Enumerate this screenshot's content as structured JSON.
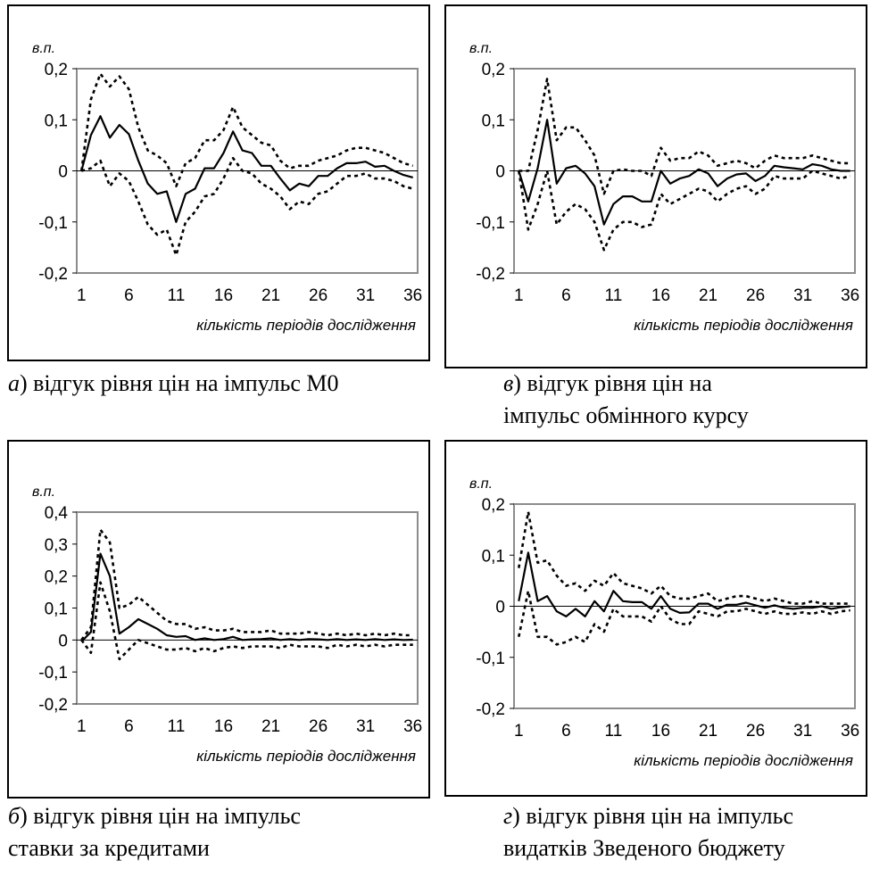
{
  "chart_data": [
    {
      "type": "line",
      "unit_label": "в.п.",
      "xlabel": "кількість періодів дослідження",
      "caption_letter": "а",
      "caption_lines": [
        ") відгук рівня цін на імпульс М0"
      ],
      "ylim": [
        -0.2,
        0.2
      ],
      "yticks": [
        "0,2",
        "0,1",
        "0",
        "-0,1",
        "-0,2"
      ],
      "ytick_values": [
        0.2,
        0.1,
        0,
        -0.1,
        -0.2
      ],
      "xticks": [
        "1",
        "6",
        "11",
        "16",
        "21",
        "26",
        "31",
        "36"
      ],
      "x": [
        1,
        2,
        3,
        4,
        5,
        6,
        7,
        8,
        9,
        10,
        11,
        12,
        13,
        14,
        15,
        16,
        17,
        18,
        19,
        20,
        21,
        22,
        23,
        24,
        25,
        26,
        27,
        28,
        29,
        30,
        31,
        32,
        33,
        34,
        35,
        36
      ],
      "series": [
        {
          "style": "solid",
          "values": [
            0.0,
            0.07,
            0.107,
            0.065,
            0.09,
            0.072,
            0.02,
            -0.025,
            -0.045,
            -0.04,
            -0.1,
            -0.045,
            -0.035,
            0.005,
            0.005,
            0.035,
            0.077,
            0.04,
            0.035,
            0.01,
            0.01,
            -0.015,
            -0.038,
            -0.025,
            -0.03,
            -0.01,
            -0.01,
            0.005,
            0.015,
            0.015,
            0.018,
            0.008,
            0.01,
            0.0,
            -0.008,
            -0.013
          ]
        },
        {
          "style": "dotted",
          "values": [
            0.0,
            0.14,
            0.19,
            0.165,
            0.185,
            0.16,
            0.085,
            0.04,
            0.03,
            0.015,
            -0.03,
            0.015,
            0.025,
            0.06,
            0.06,
            0.08,
            0.125,
            0.085,
            0.07,
            0.055,
            0.05,
            0.02,
            0.005,
            0.01,
            0.01,
            0.02,
            0.025,
            0.03,
            0.04,
            0.045,
            0.045,
            0.04,
            0.035,
            0.025,
            0.015,
            0.01
          ]
        },
        {
          "style": "dotted",
          "values": [
            0.0,
            0.005,
            0.02,
            -0.03,
            -0.005,
            -0.02,
            -0.06,
            -0.105,
            -0.125,
            -0.115,
            -0.165,
            -0.1,
            -0.08,
            -0.05,
            -0.045,
            -0.015,
            0.025,
            0.0,
            -0.005,
            -0.025,
            -0.035,
            -0.05,
            -0.075,
            -0.06,
            -0.065,
            -0.045,
            -0.04,
            -0.025,
            -0.01,
            -0.01,
            -0.005,
            -0.015,
            -0.015,
            -0.02,
            -0.03,
            -0.035
          ]
        }
      ]
    },
    {
      "type": "line",
      "unit_label": "в.п.",
      "xlabel": "кількість періодів дослідження",
      "caption_letter": "в",
      "caption_lines": [
        ") відгук рівня цін на",
        "імпульс обмінного курсу"
      ],
      "ylim": [
        -0.2,
        0.2
      ],
      "yticks": [
        "0,2",
        "0,1",
        "0",
        "-0,1",
        "-0,2"
      ],
      "ytick_values": [
        0.2,
        0.1,
        0,
        -0.1,
        -0.2
      ],
      "xticks": [
        "1",
        "6",
        "11",
        "16",
        "21",
        "26",
        "31",
        "36"
      ],
      "x": [
        1,
        2,
        3,
        4,
        5,
        6,
        7,
        8,
        9,
        10,
        11,
        12,
        13,
        14,
        15,
        16,
        17,
        18,
        19,
        20,
        21,
        22,
        23,
        24,
        25,
        26,
        27,
        28,
        29,
        30,
        31,
        32,
        33,
        34,
        35,
        36
      ],
      "series": [
        {
          "style": "solid",
          "values": [
            0.0,
            -0.06,
            0.005,
            0.1,
            -0.025,
            0.005,
            0.01,
            -0.005,
            -0.03,
            -0.105,
            -0.065,
            -0.05,
            -0.05,
            -0.06,
            -0.06,
            0.0,
            -0.025,
            -0.015,
            -0.01,
            0.003,
            -0.005,
            -0.03,
            -0.015,
            -0.007,
            -0.005,
            -0.02,
            -0.01,
            0.01,
            0.007,
            0.005,
            0.003,
            0.013,
            0.01,
            0.003,
            0.0,
            0.0
          ]
        },
        {
          "style": "dotted",
          "values": [
            0.0,
            0.0,
            0.08,
            0.18,
            0.06,
            0.085,
            0.085,
            0.06,
            0.03,
            -0.045,
            0.0,
            0.003,
            0.0,
            0.0,
            -0.01,
            0.045,
            0.02,
            0.025,
            0.025,
            0.038,
            0.03,
            0.01,
            0.015,
            0.02,
            0.015,
            0.005,
            0.02,
            0.03,
            0.025,
            0.025,
            0.025,
            0.03,
            0.025,
            0.02,
            0.015,
            0.015
          ]
        },
        {
          "style": "dotted",
          "values": [
            0.0,
            -0.115,
            -0.065,
            0.0,
            -0.105,
            -0.08,
            -0.065,
            -0.075,
            -0.1,
            -0.155,
            -0.115,
            -0.1,
            -0.1,
            -0.11,
            -0.105,
            -0.045,
            -0.065,
            -0.055,
            -0.045,
            -0.035,
            -0.04,
            -0.06,
            -0.045,
            -0.035,
            -0.03,
            -0.045,
            -0.035,
            -0.01,
            -0.015,
            -0.015,
            -0.015,
            0.0,
            -0.005,
            -0.01,
            -0.015,
            -0.01
          ]
        }
      ]
    },
    {
      "type": "line",
      "unit_label": "в.п.",
      "xlabel": "кількість періодів дослідження",
      "caption_letter": "б",
      "caption_lines": [
        ") відгук рівня цін на імпульс",
        "ставки за кредитами"
      ],
      "ylim": [
        -0.2,
        0.4
      ],
      "yticks": [
        "0,4",
        "0,3",
        "0,2",
        "0,1",
        "0",
        "-0,1",
        "-0,2"
      ],
      "ytick_values": [
        0.4,
        0.3,
        0.2,
        0.1,
        0,
        -0.1,
        -0.2
      ],
      "xticks": [
        "1",
        "6",
        "11",
        "16",
        "21",
        "26",
        "31",
        "36"
      ],
      "x": [
        1,
        2,
        3,
        4,
        5,
        6,
        7,
        8,
        9,
        10,
        11,
        12,
        13,
        14,
        15,
        16,
        17,
        18,
        19,
        20,
        21,
        22,
        23,
        24,
        25,
        26,
        27,
        28,
        29,
        30,
        31,
        32,
        33,
        34,
        35,
        36
      ],
      "series": [
        {
          "style": "solid",
          "values": [
            -0.005,
            0.025,
            0.27,
            0.2,
            0.02,
            0.04,
            0.065,
            0.05,
            0.035,
            0.015,
            0.01,
            0.012,
            0.0,
            0.005,
            0.0,
            0.003,
            0.01,
            0.0,
            0.002,
            0.003,
            0.005,
            0.0,
            0.003,
            0.0,
            0.003,
            0.002,
            0.0,
            0.003,
            0.0,
            0.002,
            0.0,
            0.003,
            0.0,
            0.002,
            0.0,
            0.001
          ]
        },
        {
          "style": "dotted",
          "values": [
            0.0,
            0.04,
            0.345,
            0.305,
            0.1,
            0.11,
            0.135,
            0.11,
            0.085,
            0.06,
            0.05,
            0.05,
            0.035,
            0.04,
            0.03,
            0.03,
            0.035,
            0.025,
            0.025,
            0.025,
            0.03,
            0.02,
            0.02,
            0.02,
            0.025,
            0.02,
            0.015,
            0.02,
            0.015,
            0.02,
            0.015,
            0.02,
            0.015,
            0.02,
            0.015,
            0.015
          ]
        },
        {
          "style": "dotted",
          "values": [
            0.0,
            -0.04,
            0.18,
            0.09,
            -0.06,
            -0.03,
            0.0,
            -0.01,
            -0.02,
            -0.03,
            -0.03,
            -0.025,
            -0.035,
            -0.025,
            -0.035,
            -0.025,
            -0.02,
            -0.025,
            -0.02,
            -0.02,
            -0.02,
            -0.025,
            -0.015,
            -0.02,
            -0.02,
            -0.02,
            -0.025,
            -0.015,
            -0.02,
            -0.015,
            -0.02,
            -0.015,
            -0.02,
            -0.015,
            -0.015,
            -0.015
          ]
        }
      ]
    },
    {
      "type": "line",
      "unit_label": "в.п.",
      "xlabel": "кількість періодів дослідження",
      "caption_letter": "г",
      "caption_lines": [
        ") відгук рівня цін на імпульс",
        "видатків Зведеного бюджету"
      ],
      "ylim": [
        -0.2,
        0.2
      ],
      "yticks": [
        "0,2",
        "0,1",
        "0",
        "-0,1",
        "-0,2"
      ],
      "ytick_values": [
        0.2,
        0.1,
        0,
        -0.1,
        -0.2
      ],
      "xticks": [
        "1",
        "6",
        "11",
        "16",
        "21",
        "26",
        "31",
        "36"
      ],
      "x": [
        1,
        2,
        3,
        4,
        5,
        6,
        7,
        8,
        9,
        10,
        11,
        12,
        13,
        14,
        15,
        16,
        17,
        18,
        19,
        20,
        21,
        22,
        23,
        24,
        25,
        26,
        27,
        28,
        29,
        30,
        31,
        32,
        33,
        34,
        35,
        36
      ],
      "series": [
        {
          "style": "solid",
          "values": [
            0.01,
            0.105,
            0.01,
            0.02,
            -0.01,
            -0.02,
            -0.005,
            -0.02,
            0.01,
            -0.01,
            0.03,
            0.01,
            0.008,
            0.008,
            -0.005,
            0.02,
            -0.005,
            -0.013,
            -0.012,
            0.005,
            0.005,
            -0.005,
            0.003,
            0.003,
            0.007,
            0.002,
            -0.003,
            0.002,
            -0.003,
            -0.005,
            -0.003,
            -0.003,
            0.0,
            -0.005,
            -0.002,
            0.0
          ]
        },
        {
          "style": "dotted",
          "values": [
            0.075,
            0.185,
            0.085,
            0.09,
            0.06,
            0.04,
            0.045,
            0.03,
            0.05,
            0.04,
            0.065,
            0.045,
            0.04,
            0.035,
            0.025,
            0.04,
            0.02,
            0.015,
            0.015,
            0.02,
            0.025,
            0.01,
            0.015,
            0.02,
            0.02,
            0.015,
            0.01,
            0.015,
            0.01,
            0.005,
            0.005,
            0.01,
            0.005,
            0.005,
            0.005,
            0.005
          ]
        },
        {
          "style": "dotted",
          "values": [
            -0.06,
            0.03,
            -0.06,
            -0.06,
            -0.075,
            -0.07,
            -0.06,
            -0.07,
            -0.035,
            -0.05,
            -0.005,
            -0.02,
            -0.02,
            -0.02,
            -0.03,
            0.0,
            -0.025,
            -0.035,
            -0.035,
            -0.01,
            -0.015,
            -0.02,
            -0.01,
            -0.01,
            -0.005,
            -0.01,
            -0.015,
            -0.01,
            -0.015,
            -0.015,
            -0.012,
            -0.015,
            -0.01,
            -0.015,
            -0.01,
            -0.008
          ]
        }
      ]
    }
  ]
}
